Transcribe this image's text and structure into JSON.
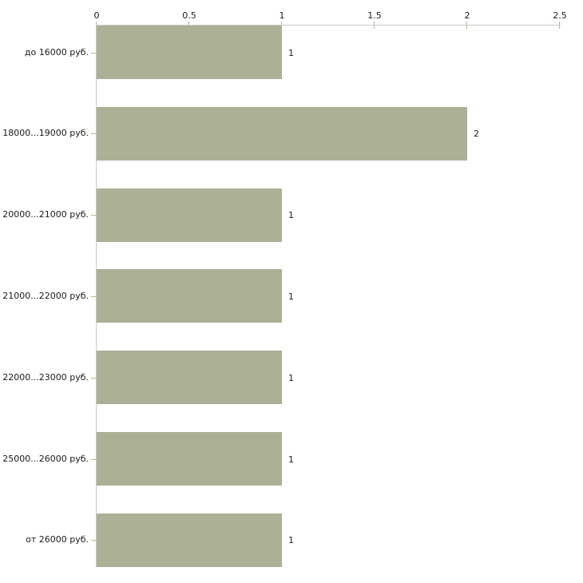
{
  "chart_data": {
    "type": "bar",
    "orientation": "horizontal",
    "title": "",
    "xlabel": "",
    "ylabel": "",
    "categories": [
      "до 16000 руб.",
      "18000...19000 руб.",
      "20000...21000 руб.",
      "21000...22000 руб.",
      "22000...23000 руб.",
      "25000...26000 руб.",
      "от 26000 руб."
    ],
    "values": [
      1,
      2,
      1,
      1,
      1,
      1,
      1
    ],
    "value_labels": [
      "1",
      "2",
      "1",
      "1",
      "1",
      "1",
      "1"
    ],
    "xlim": [
      0,
      2.5
    ],
    "x_tick_values": [
      0,
      0.5,
      1,
      1.5,
      2,
      2.5
    ],
    "x_tick_labels": [
      "0",
      "0.5",
      "1",
      "1.5",
      "2",
      "2.5"
    ],
    "axis_position": "top",
    "grid": false,
    "legend": false,
    "colors": {
      "bar": "#abb096",
      "axis_line": "#c8c8c8",
      "tick": "#b6b78c",
      "text": "#1a1a1a",
      "background": "#ffffff"
    }
  }
}
